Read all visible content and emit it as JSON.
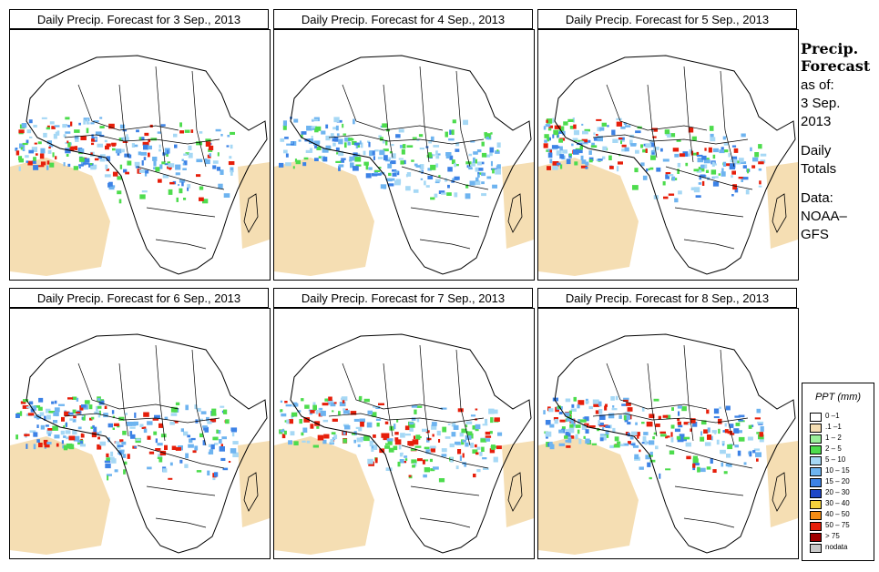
{
  "panels": [
    {
      "title": "Daily Precip. Forecast for  3 Sep., 2013"
    },
    {
      "title": "Daily Precip. Forecast for  4 Sep., 2013"
    },
    {
      "title": "Daily Precip. Forecast for  5 Sep., 2013"
    },
    {
      "title": "Daily Precip. Forecast for  6 Sep., 2013"
    },
    {
      "title": "Daily Precip. Forecast for  7 Sep., 2013"
    },
    {
      "title": "Daily Precip. Forecast for  8 Sep., 2013"
    }
  ],
  "side": {
    "heading1": "Precip.",
    "heading2": "Forecast",
    "asof": "as of:",
    "date1": "3 Sep.",
    "date2": "2013",
    "totals1": "Daily",
    "totals2": "Totals",
    "data1": "Data:",
    "data2": "NOAA–",
    "data3": "GFS"
  },
  "legend": {
    "title": "PPT (mm)",
    "items": [
      {
        "label": "0 –1",
        "color": "#ffffff"
      },
      {
        "label": ".1 –1",
        "color": "#f5deb3"
      },
      {
        "label": "1 – 2",
        "color": "#9bf09b"
      },
      {
        "label": "2 – 5",
        "color": "#4ddc4d"
      },
      {
        "label": "5 – 10",
        "color": "#a6d8f5"
      },
      {
        "label": "10 – 15",
        "color": "#6eb4f0"
      },
      {
        "label": "15 – 20",
        "color": "#3c82e6"
      },
      {
        "label": "20 – 30",
        "color": "#1e46c8"
      },
      {
        "label": "30 – 40",
        "color": "#f5d23c"
      },
      {
        "label": "40 – 50",
        "color": "#f58c14"
      },
      {
        "label": "50 – 75",
        "color": "#e61e0a"
      },
      {
        "label": "> 75",
        "color": "#a00000"
      },
      {
        "label": "nodata",
        "color": "#c8c8c8"
      }
    ]
  }
}
